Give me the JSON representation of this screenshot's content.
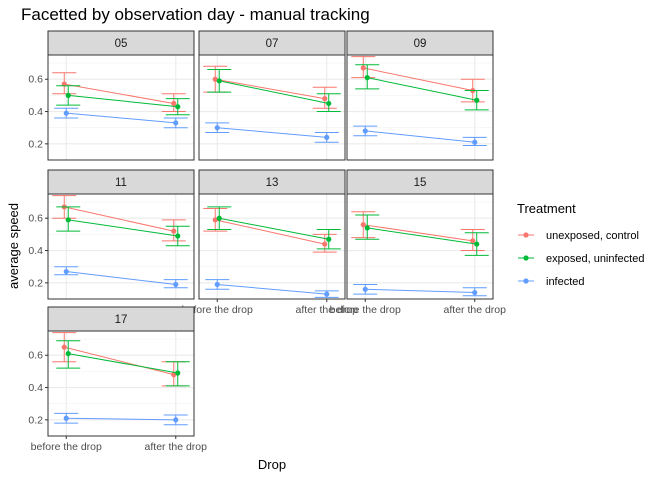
{
  "chart_data": {
    "type": "line",
    "title": "Facetted by observation day - manual tracking",
    "xlabel": "Drop",
    "ylabel": "average speed",
    "categories": [
      "before the drop",
      "after the drop"
    ],
    "ylim": [
      0.1,
      0.75
    ],
    "yticks": [
      0.2,
      0.4,
      0.6
    ],
    "ytick_labels": [
      "0.2",
      "0.4",
      "0.6"
    ],
    "grid": true,
    "legend_title": "Treatment",
    "legend_position": "right",
    "series_info": [
      {
        "name": "unexposed, control",
        "color": "#F8766D"
      },
      {
        "name": "exposed, uninfected",
        "color": "#00BA38"
      },
      {
        "name": "infected",
        "color": "#619CFF"
      }
    ],
    "facets": [
      {
        "label": "05",
        "series": [
          {
            "name": "unexposed, control",
            "values": [
              0.57,
              0.45
            ],
            "lower": [
              0.51,
              0.4
            ],
            "upper": [
              0.64,
              0.51
            ]
          },
          {
            "name": "exposed, uninfected",
            "values": [
              0.5,
              0.43
            ],
            "lower": [
              0.44,
              0.38
            ],
            "upper": [
              0.56,
              0.48
            ]
          },
          {
            "name": "infected",
            "values": [
              0.39,
              0.33
            ],
            "lower": [
              0.36,
              0.3
            ],
            "upper": [
              0.42,
              0.36
            ]
          }
        ]
      },
      {
        "label": "07",
        "series": [
          {
            "name": "unexposed, control",
            "values": [
              0.6,
              0.48
            ],
            "lower": [
              0.52,
              0.42
            ],
            "upper": [
              0.68,
              0.55
            ]
          },
          {
            "name": "exposed, uninfected",
            "values": [
              0.59,
              0.45
            ],
            "lower": [
              0.52,
              0.4
            ],
            "upper": [
              0.66,
              0.51
            ]
          },
          {
            "name": "infected",
            "values": [
              0.3,
              0.24
            ],
            "lower": [
              0.27,
              0.21
            ],
            "upper": [
              0.33,
              0.27
            ]
          }
        ]
      },
      {
        "label": "09",
        "series": [
          {
            "name": "unexposed, control",
            "values": [
              0.67,
              0.53
            ],
            "lower": [
              0.61,
              0.46
            ],
            "upper": [
              0.74,
              0.6
            ]
          },
          {
            "name": "exposed, uninfected",
            "values": [
              0.61,
              0.47
            ],
            "lower": [
              0.54,
              0.41
            ],
            "upper": [
              0.69,
              0.53
            ]
          },
          {
            "name": "infected",
            "values": [
              0.28,
              0.21
            ],
            "lower": [
              0.25,
              0.19
            ],
            "upper": [
              0.31,
              0.24
            ]
          }
        ]
      },
      {
        "label": "11",
        "series": [
          {
            "name": "unexposed, control",
            "values": [
              0.67,
              0.52
            ],
            "lower": [
              0.6,
              0.46
            ],
            "upper": [
              0.74,
              0.59
            ]
          },
          {
            "name": "exposed, uninfected",
            "values": [
              0.59,
              0.49
            ],
            "lower": [
              0.52,
              0.43
            ],
            "upper": [
              0.67,
              0.55
            ]
          },
          {
            "name": "infected",
            "values": [
              0.27,
              0.19
            ],
            "lower": [
              0.25,
              0.17
            ],
            "upper": [
              0.3,
              0.22
            ]
          }
        ]
      },
      {
        "label": "13",
        "series": [
          {
            "name": "unexposed, control",
            "values": [
              0.59,
              0.44
            ],
            "lower": [
              0.52,
              0.39
            ],
            "upper": [
              0.66,
              0.5
            ]
          },
          {
            "name": "exposed, uninfected",
            "values": [
              0.6,
              0.47
            ],
            "lower": [
              0.53,
              0.41
            ],
            "upper": [
              0.67,
              0.53
            ]
          },
          {
            "name": "infected",
            "values": [
              0.19,
              0.13
            ],
            "lower": [
              0.16,
              0.11
            ],
            "upper": [
              0.22,
              0.15
            ]
          }
        ]
      },
      {
        "label": "15",
        "series": [
          {
            "name": "unexposed, control",
            "values": [
              0.56,
              0.46
            ],
            "lower": [
              0.48,
              0.4
            ],
            "upper": [
              0.64,
              0.53
            ]
          },
          {
            "name": "exposed, uninfected",
            "values": [
              0.54,
              0.44
            ],
            "lower": [
              0.47,
              0.37
            ],
            "upper": [
              0.62,
              0.51
            ]
          },
          {
            "name": "infected",
            "values": [
              0.16,
              0.14
            ],
            "lower": [
              0.13,
              0.12
            ],
            "upper": [
              0.19,
              0.17
            ]
          }
        ]
      },
      {
        "label": "17",
        "series": [
          {
            "name": "unexposed, control",
            "values": [
              0.65,
              0.48
            ],
            "lower": [
              0.56,
              0.41
            ],
            "upper": [
              0.74,
              0.56
            ]
          },
          {
            "name": "exposed, uninfected",
            "values": [
              0.61,
              0.49
            ],
            "lower": [
              0.52,
              0.41
            ],
            "upper": [
              0.69,
              0.56
            ]
          },
          {
            "name": "infected",
            "values": [
              0.21,
              0.2
            ],
            "lower": [
              0.18,
              0.17
            ],
            "upper": [
              0.24,
              0.23
            ]
          }
        ]
      }
    ]
  }
}
